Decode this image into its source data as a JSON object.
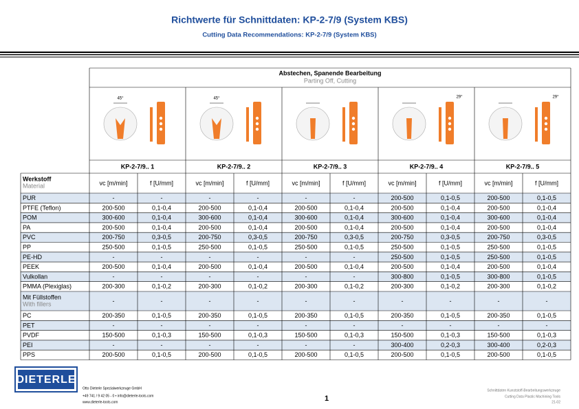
{
  "header": {
    "title": "Richtwerte für Schnittdaten: KP-2-7/9 (System KBS)",
    "subtitle": "Cutting Data Recommendations: KP-2-7/9 (System KBS)"
  },
  "table": {
    "title": "Abstechen, Spanende Bearbeitung",
    "subtitle": "Parting Off, Cutting",
    "tools": [
      {
        "name": "KP-2-7/9.. 1",
        "angle": "45°"
      },
      {
        "name": "KP-2-7/9.. 2",
        "angle": "45°"
      },
      {
        "name": "KP-2-7/9.. 3"
      },
      {
        "name": "KP-2-7/9.. 4",
        "angle": "29°"
      },
      {
        "name": "KP-2-7/9.. 5",
        "angle": "29°"
      }
    ],
    "material_label": "Werkstoff",
    "material_sublabel": "Material",
    "vc_label": "vc [m/min]",
    "f_label": "f [U/mm]",
    "rows": [
      {
        "name": "PUR",
        "values": [
          "-",
          "-",
          "-",
          "-",
          "-",
          "-",
          "200-500",
          "0,1-0,5",
          "200-500",
          "0,1-0,5"
        ]
      },
      {
        "name": "PTFE (Teflon)",
        "values": [
          "200-500",
          "0,1-0,4",
          "200-500",
          "0,1-0,4",
          "200-500",
          "0,1-0,4",
          "200-500",
          "0,1-0,4",
          "200-500",
          "0,1-0,4"
        ]
      },
      {
        "name": "POM",
        "values": [
          "300-600",
          "0,1-0,4",
          "300-600",
          "0,1-0,4",
          "300-600",
          "0,1-0,4",
          "300-600",
          "0,1-0,4",
          "300-600",
          "0,1-0,4"
        ]
      },
      {
        "name": "PA",
        "values": [
          "200-500",
          "0,1-0,4",
          "200-500",
          "0,1-0,4",
          "200-500",
          "0,1-0,4",
          "200-500",
          "0,1-0,4",
          "200-500",
          "0,1-0,4"
        ]
      },
      {
        "name": "PVC",
        "values": [
          "200-750",
          "0,3-0,5",
          "200-750",
          "0,3-0,5",
          "200-750",
          "0,3-0,5",
          "200-750",
          "0,3-0,5",
          "200-750",
          "0,3-0,5"
        ]
      },
      {
        "name": "PP",
        "values": [
          "250-500",
          "0,1-0,5",
          "250-500",
          "0,1-0,5",
          "250-500",
          "0,1-0,5",
          "250-500",
          "0,1-0,5",
          "250-500",
          "0,1-0,5"
        ]
      },
      {
        "name": "PE-HD",
        "values": [
          "-",
          "-",
          "-",
          "-",
          "-",
          "-",
          "250-500",
          "0,1-0,5",
          "250-500",
          "0,1-0,5"
        ]
      },
      {
        "name": "PEEK",
        "values": [
          "200-500",
          "0,1-0,4",
          "200-500",
          "0,1-0,4",
          "200-500",
          "0,1-0,4",
          "200-500",
          "0,1-0,4",
          "200-500",
          "0,1-0,4"
        ]
      },
      {
        "name": "Vulkollan",
        "values": [
          "-",
          "-",
          "-",
          "-",
          "-",
          "-",
          "300-800",
          "0,1-0,5",
          "300-800",
          "0,1-0,5"
        ]
      },
      {
        "name": "PMMA (Plexiglas)",
        "values": [
          "200-300",
          "0,1-0,2",
          "200-300",
          "0,1-0,2",
          "200-300",
          "0,1-0,2",
          "200-300",
          "0,1-0,2",
          "200-300",
          "0,1-0,2"
        ]
      },
      {
        "name": "Mit Füllstoffen",
        "subname": "With fillers",
        "values": [
          "-",
          "-",
          "-",
          "-",
          "-",
          "-",
          "-",
          "-",
          "-",
          "-"
        ]
      },
      {
        "name": "PC",
        "values": [
          "200-350",
          "0,1-0,5",
          "200-350",
          "0,1-0,5",
          "200-350",
          "0,1-0,5",
          "200-350",
          "0,1-0,5",
          "200-350",
          "0,1-0,5"
        ]
      },
      {
        "name": "PET",
        "values": [
          "-",
          "-",
          "-",
          "-",
          "-",
          "-",
          "-",
          "-",
          "-",
          "-"
        ]
      },
      {
        "name": "PVDF",
        "values": [
          "150-500",
          "0,1-0,3",
          "150-500",
          "0,1-0,3",
          "150-500",
          "0,1-0,3",
          "150-500",
          "0,1-0,3",
          "150-500",
          "0,1-0,3"
        ]
      },
      {
        "name": "PEI",
        "values": [
          "-",
          "-",
          "-",
          "-",
          "-",
          "-",
          "300-400",
          "0,2-0,3",
          "300-400",
          "0,2-0,3"
        ]
      },
      {
        "name": "PPS",
        "values": [
          "200-500",
          "0,1-0,5",
          "200-500",
          "0,1-0,5",
          "200-500",
          "0,1-0,5",
          "200-500",
          "0,1-0,5",
          "200-500",
          "0,1-0,5"
        ]
      }
    ]
  },
  "footer": {
    "logo": "DIETERLE",
    "company": "Otto Dieterle Spezialwerkzeuge GmbH",
    "contact": "+49 741 / 9 42 05 - 0 • info@dieterle-tools.com",
    "web": "www.dieterle-tools.com",
    "page": "1",
    "doc_de": "Schnittdaten Kunststoff-Bearbeitungswerkzeuge",
    "doc_en": "Cutting Data Plastic Machining Tools",
    "code": "21-02"
  }
}
